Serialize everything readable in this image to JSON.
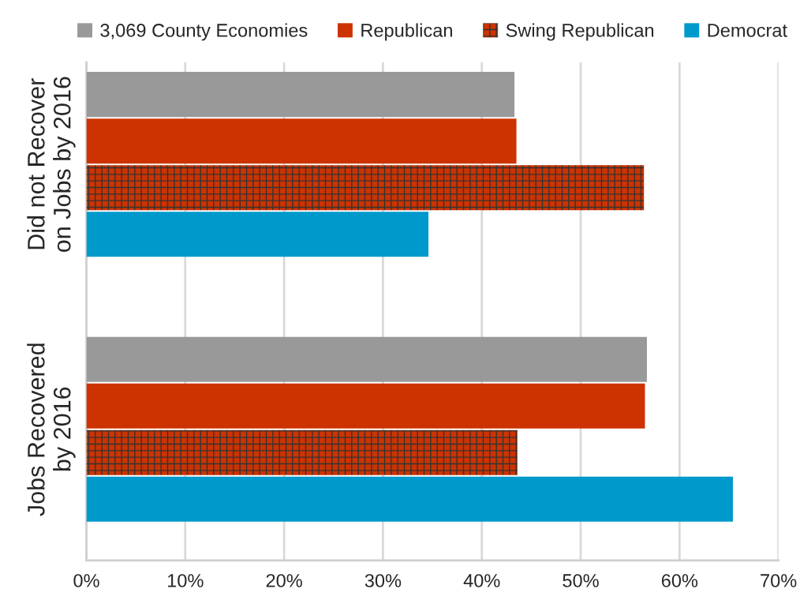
{
  "chart_data": {
    "type": "bar",
    "orientation": "horizontal",
    "categories": [
      "Did not Recover\non Jobs by 2016",
      "Jobs Recovered\nby 2016"
    ],
    "series": [
      {
        "name": "3,069 County Economies",
        "color": "#999999",
        "values": [
          43.3,
          56.7
        ]
      },
      {
        "name": "Republican",
        "color": "#cc3300",
        "values": [
          43.5,
          56.5
        ]
      },
      {
        "name": "Swing Republican",
        "color": "#cc3300",
        "values": [
          56.4,
          43.6
        ]
      },
      {
        "name": "Democrat",
        "color": "#0099cc",
        "values": [
          34.6,
          65.4
        ]
      }
    ],
    "xlim": [
      0,
      70
    ],
    "xticks": [
      {
        "value": 0,
        "label": "0%"
      },
      {
        "value": 10,
        "label": "10%"
      },
      {
        "value": 20,
        "label": "20%"
      },
      {
        "value": 30,
        "label": "30%"
      },
      {
        "value": 40,
        "label": "40%"
      },
      {
        "value": 50,
        "label": "50%"
      },
      {
        "value": 60,
        "label": "60%"
      },
      {
        "value": 70,
        "label": "70%"
      }
    ],
    "grid": "x",
    "legend": "top"
  }
}
